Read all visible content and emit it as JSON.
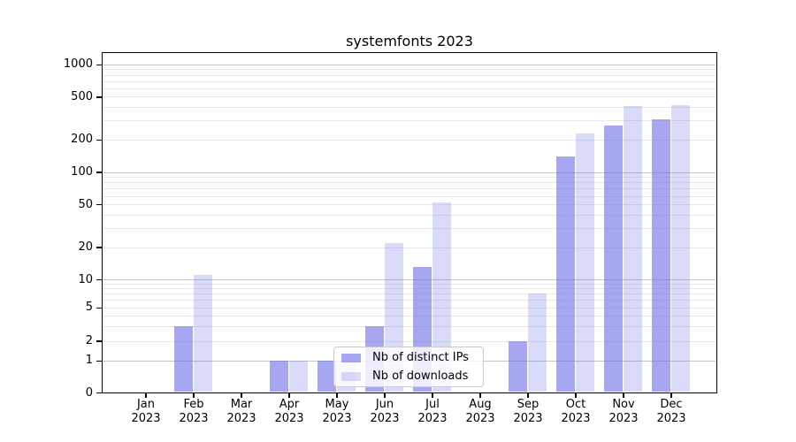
{
  "title": "systemfonts 2023",
  "chart_data": {
    "type": "bar",
    "title": "systemfonts 2023",
    "xlabel": "",
    "ylabel": "",
    "y_scale": "pseudo-log",
    "grid": true,
    "legend_position": "inside-bottom-center",
    "categories": [
      "Jan",
      "Feb",
      "Mar",
      "Apr",
      "May",
      "Jun",
      "Jul",
      "Aug",
      "Sep",
      "Oct",
      "Nov",
      "Dec"
    ],
    "year": "2023",
    "y_ticks": [
      0,
      1,
      2,
      5,
      10,
      20,
      50,
      100,
      200,
      500,
      1000
    ],
    "series": [
      {
        "name": "Nb of distinct IPs",
        "color": "rgba(106,106,232,0.6)",
        "values": [
          0,
          3,
          0,
          1,
          1,
          3,
          13,
          0,
          2,
          140,
          270,
          310
        ]
      },
      {
        "name": "Nb of downloads",
        "color": "rgba(106,106,232,0.25)",
        "values": [
          0,
          11,
          0,
          1,
          1,
          22,
          52,
          0,
          7,
          230,
          410,
          420
        ]
      }
    ]
  },
  "colors": {
    "bar_base": "#6a6ae8",
    "major_grid": "#c4c4c4",
    "minor_grid": "#e8e8e8",
    "axis": "#000000",
    "background": "#ffffff"
  }
}
